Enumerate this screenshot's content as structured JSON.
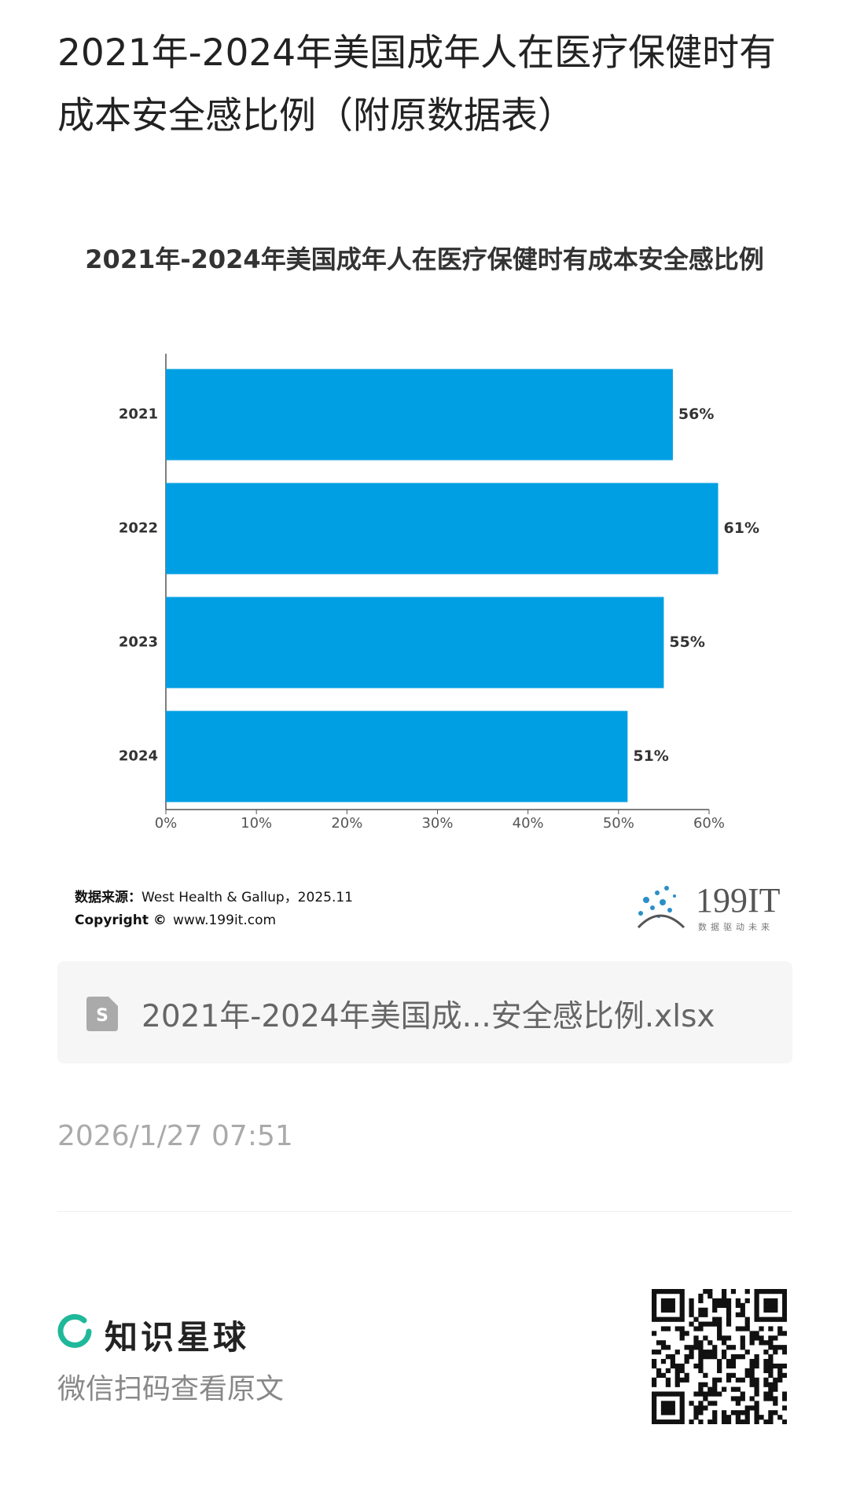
{
  "page_title": "2021年-2024年美国成年人在医疗保健时有成本安全感比例（附原数据表）",
  "chart_data": {
    "type": "bar",
    "orientation": "horizontal",
    "title": "2021年-2024年美国成年人在医疗保健时有成本安全感比例",
    "categories": [
      "2021",
      "2022",
      "2023",
      "2024"
    ],
    "values": [
      56,
      61,
      55,
      51
    ],
    "value_labels": [
      "56%",
      "61%",
      "55%",
      "51%"
    ],
    "color": "#009fe3",
    "xlim": [
      0,
      60
    ],
    "xticks": [
      {
        "value": 0,
        "label": "0%"
      },
      {
        "value": 10,
        "label": "10%"
      },
      {
        "value": 20,
        "label": "20%"
      },
      {
        "value": 30,
        "label": "30%"
      },
      {
        "value": 40,
        "label": "40%"
      },
      {
        "value": 50,
        "label": "50%"
      },
      {
        "value": 60,
        "label": "60%"
      }
    ],
    "grid": false
  },
  "source_label": "数据来源：",
  "source": "West Health & Gallup，2025.11",
  "copyright": "Copyright ©",
  "website": "www.199it.com",
  "logo": "199IT",
  "logo_slogan": "数据驱动未来",
  "file_name": "2021年-2024年美国成...安全感比例.xlsx",
  "date": "2026/1/27 07:51",
  "brand": "知识星球",
  "scan_hint": "微信扫码查看原文"
}
